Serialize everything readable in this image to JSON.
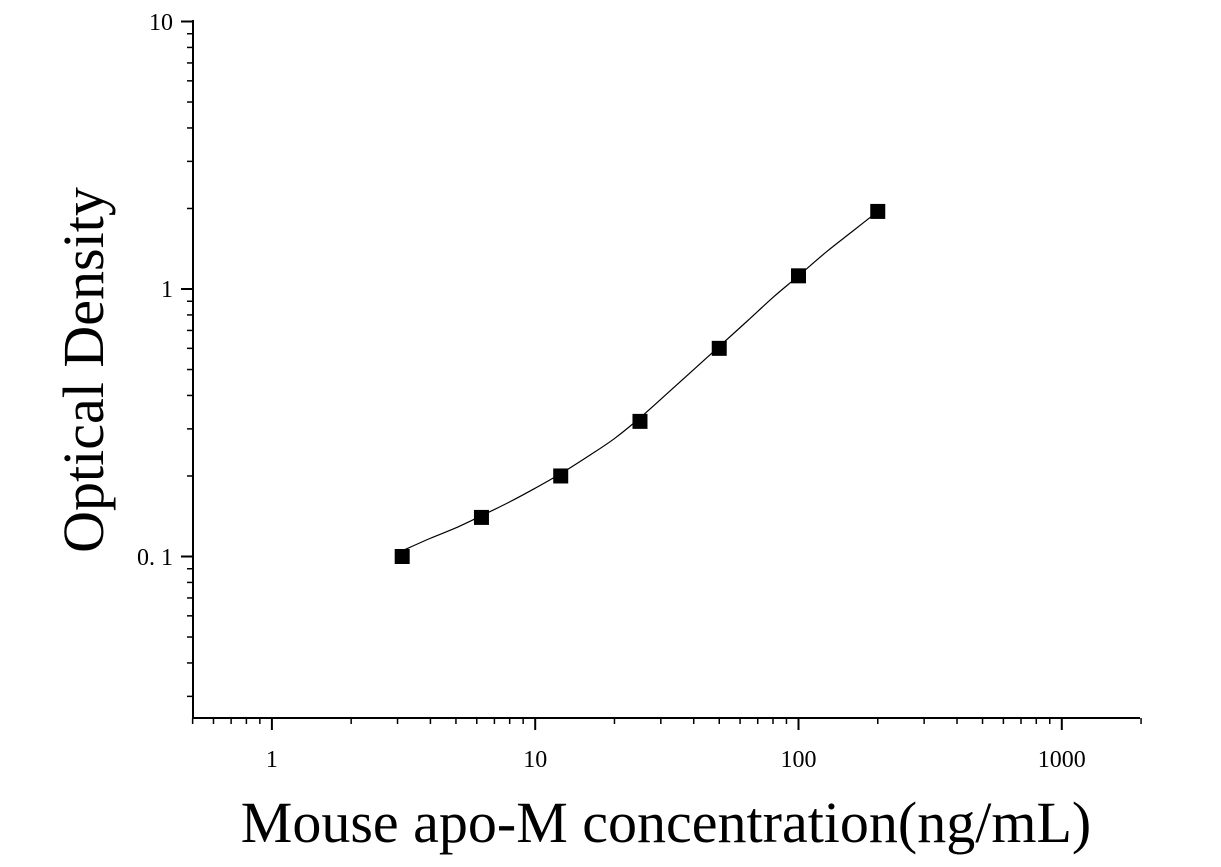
{
  "chart_data": {
    "type": "scatter",
    "title": "",
    "xlabel": "Mouse apo-M concentration(ng/mL)",
    "ylabel": "Optical Density",
    "x_scale": "log",
    "y_scale": "log",
    "xlim": [
      0.5,
      2000
    ],
    "ylim": [
      0.025,
      10
    ],
    "x_tick_labels": [
      "1",
      "10",
      "100",
      "1000"
    ],
    "y_tick_labels": [
      "10",
      "1",
      "0. 1"
    ],
    "grid": false,
    "legend": "none",
    "marker_color": "#000000",
    "series": [
      {
        "x": [
          3.125,
          6.25,
          12.5,
          25,
          50,
          100,
          200
        ],
        "y": [
          0.1,
          0.14,
          0.2,
          0.32,
          0.6,
          1.12,
          1.95
        ]
      }
    ],
    "fit_curve": {
      "x": [
        3.125,
        4,
        5,
        6.25,
        8,
        10,
        12.5,
        16,
        20,
        25,
        32,
        40,
        50,
        64,
        80,
        100,
        128,
        160,
        200
      ],
      "y": [
        0.105,
        0.117,
        0.128,
        0.142,
        0.16,
        0.18,
        0.204,
        0.238,
        0.276,
        0.33,
        0.41,
        0.5,
        0.61,
        0.76,
        0.93,
        1.12,
        1.38,
        1.64,
        1.95
      ]
    }
  }
}
